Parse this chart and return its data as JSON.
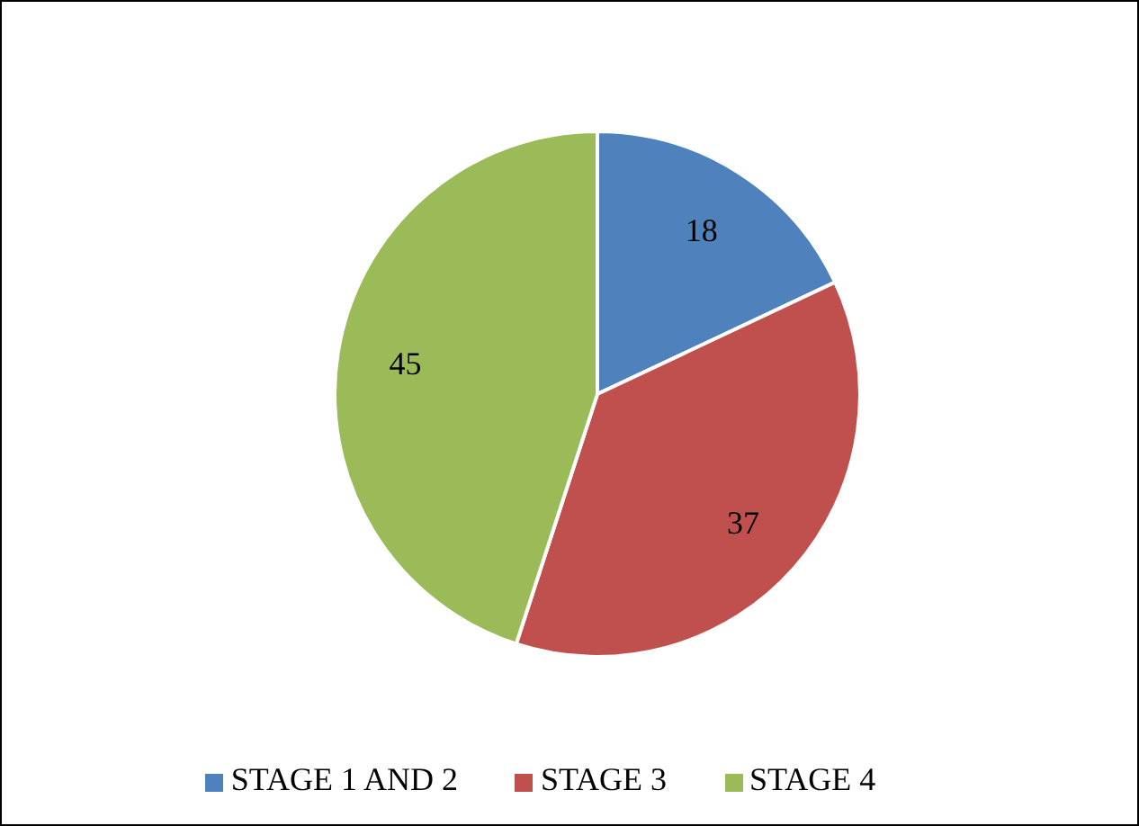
{
  "chart_data": {
    "type": "pie",
    "categories": [
      "STAGE 1 AND 2",
      "STAGE 3",
      "STAGE 4"
    ],
    "values": [
      18,
      37,
      45
    ],
    "colors": [
      "#4f81bd",
      "#c0504d",
      "#9bbb59"
    ],
    "data_labels": true,
    "legend": "bottom"
  }
}
